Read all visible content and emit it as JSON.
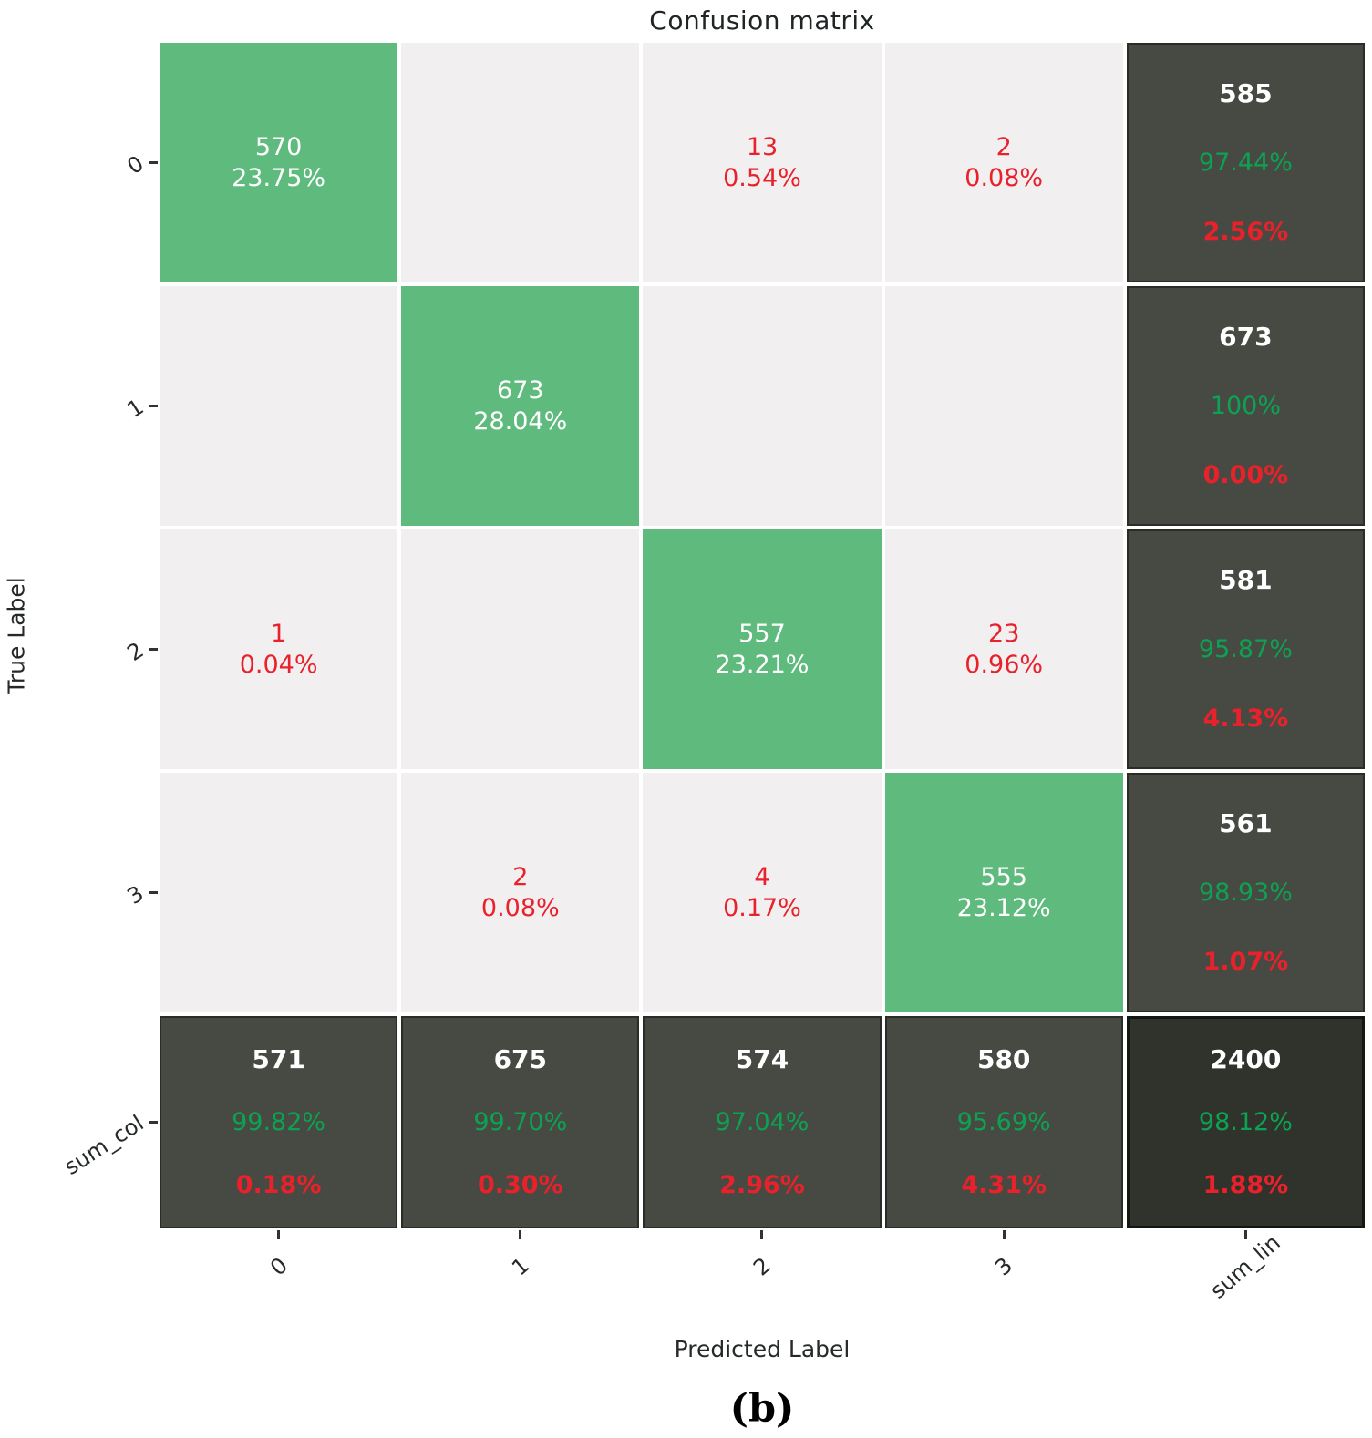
{
  "chart_data": {
    "type": "heatmap",
    "subtype": "confusion-matrix",
    "title": "Confusion matrix",
    "xlabel": "Predicted Label",
    "ylabel": "True Label",
    "caption": "(b)",
    "row_labels": [
      "0",
      "1",
      "2",
      "3",
      "sum_col"
    ],
    "col_labels": [
      "0",
      "1",
      "2",
      "3",
      "sum_lin"
    ],
    "legend_position": "none",
    "grid": "white-gaps",
    "cells": [
      [
        {
          "type": "diag",
          "count": 570,
          "pct": "23.75%"
        },
        {
          "type": "empty"
        },
        {
          "type": "error",
          "count": 13,
          "pct": "0.54%"
        },
        {
          "type": "error",
          "count": 2,
          "pct": "0.08%"
        },
        {
          "type": "sum",
          "count": 585,
          "correct_pct": "97.44%",
          "error_pct": "2.56%"
        }
      ],
      [
        {
          "type": "empty"
        },
        {
          "type": "diag",
          "count": 673,
          "pct": "28.04%"
        },
        {
          "type": "empty"
        },
        {
          "type": "empty"
        },
        {
          "type": "sum",
          "count": 673,
          "correct_pct": "100%",
          "error_pct": "0.00%"
        }
      ],
      [
        {
          "type": "error",
          "count": 1,
          "pct": "0.04%"
        },
        {
          "type": "empty"
        },
        {
          "type": "diag",
          "count": 557,
          "pct": "23.21%"
        },
        {
          "type": "error",
          "count": 23,
          "pct": "0.96%"
        },
        {
          "type": "sum",
          "count": 581,
          "correct_pct": "95.87%",
          "error_pct": "4.13%"
        }
      ],
      [
        {
          "type": "empty"
        },
        {
          "type": "error",
          "count": 2,
          "pct": "0.08%"
        },
        {
          "type": "error",
          "count": 4,
          "pct": "0.17%"
        },
        {
          "type": "diag",
          "count": 555,
          "pct": "23.12%"
        },
        {
          "type": "sum",
          "count": 561,
          "correct_pct": "98.93%",
          "error_pct": "1.07%"
        }
      ],
      [
        {
          "type": "sum",
          "count": 571,
          "correct_pct": "99.82%",
          "error_pct": "0.18%"
        },
        {
          "type": "sum",
          "count": 675,
          "correct_pct": "99.70%",
          "error_pct": "0.30%"
        },
        {
          "type": "sum",
          "count": 574,
          "correct_pct": "97.04%",
          "error_pct": "2.96%"
        },
        {
          "type": "sum",
          "count": 580,
          "correct_pct": "95.69%",
          "error_pct": "4.31%"
        },
        {
          "type": "total",
          "count": 2400,
          "correct_pct": "98.12%",
          "error_pct": "1.88%"
        }
      ]
    ],
    "colors": {
      "diag_bg": "#5fba7e",
      "empty_bg": "#f2eff1",
      "sum_bg": "#464a42",
      "total_bg": "#2f332c",
      "error_text": "#e8212a",
      "ok_text": "#0da253",
      "count_text": "#ffffff"
    }
  }
}
